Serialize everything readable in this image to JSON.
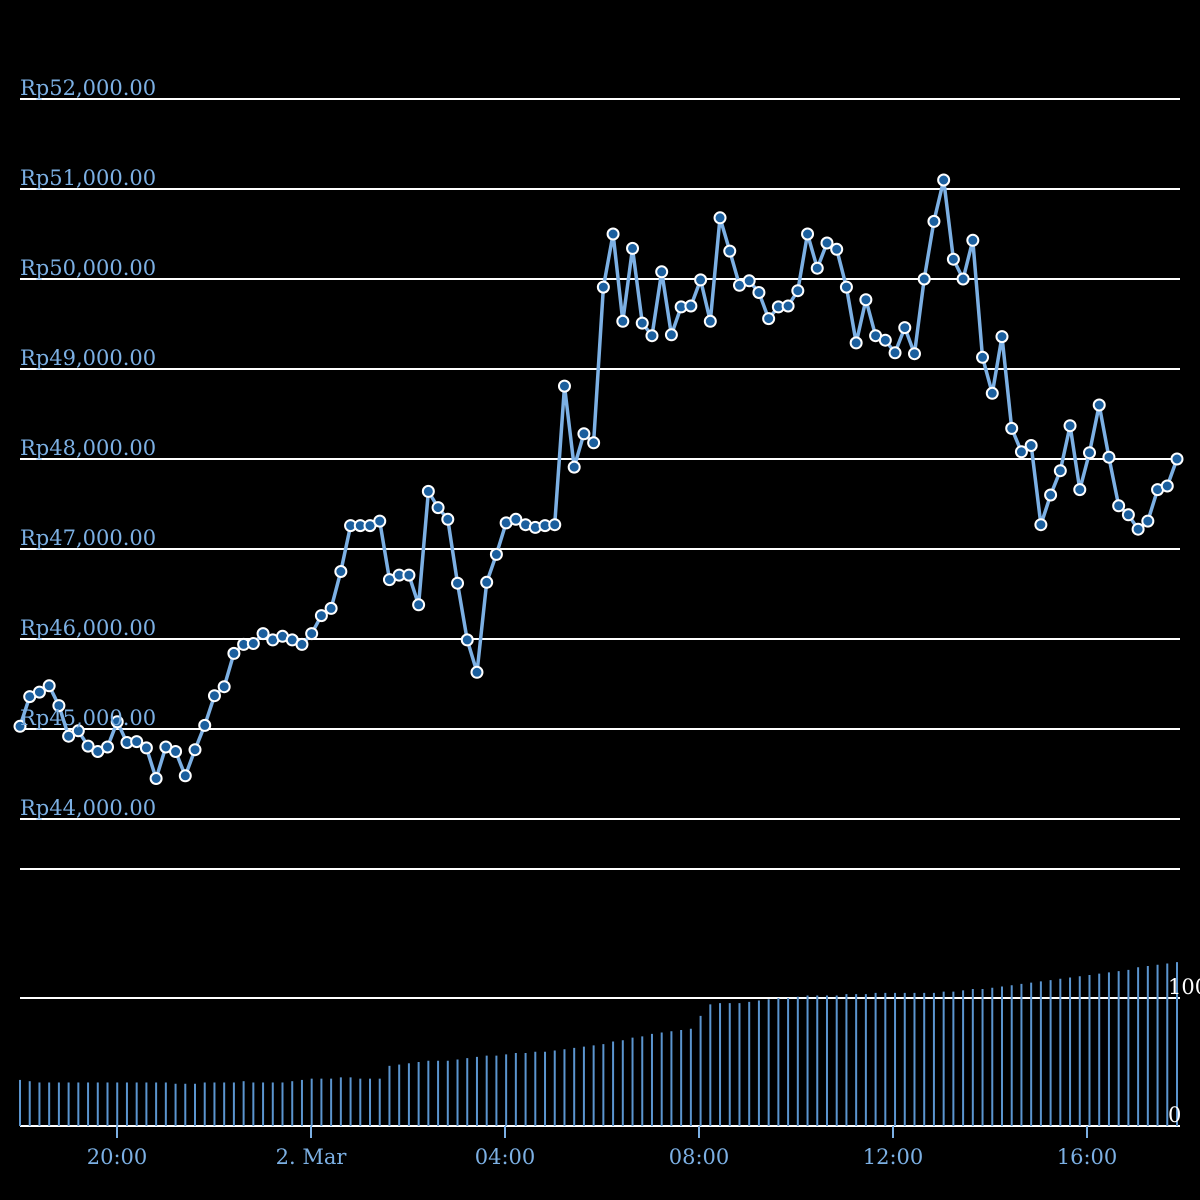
{
  "chart_data": {
    "type": "line",
    "title": "",
    "currency_prefix": "Rp",
    "price_axis": {
      "ticks": [
        {
          "value": 52000,
          "label": "Rp52,000.00"
        },
        {
          "value": 51000,
          "label": "Rp51,000.00"
        },
        {
          "value": 50000,
          "label": "Rp50,000.00"
        },
        {
          "value": 49000,
          "label": "Rp49,000.00"
        },
        {
          "value": 48000,
          "label": "Rp48,000.00"
        },
        {
          "value": 47000,
          "label": "Rp47,000.00"
        },
        {
          "value": 46000,
          "label": "Rp46,000.00"
        },
        {
          "value": 45000,
          "label": "Rp45,000.00"
        },
        {
          "value": 44000,
          "label": "Rp44,000.00"
        }
      ],
      "ylim": [
        44000,
        52000
      ],
      "grid": true
    },
    "volume_axis": {
      "ticks": [
        {
          "value": 100,
          "label": "100"
        },
        {
          "value": 0,
          "label": "0"
        }
      ]
    },
    "time_axis": {
      "ticks": [
        {
          "time": "20:00",
          "label": "20:00"
        },
        {
          "time": "00:00",
          "label": "2. Mar"
        },
        {
          "time": "04:00",
          "label": "04:00"
        },
        {
          "time": "08:00",
          "label": "08:00"
        },
        {
          "time": "12:00",
          "label": "12:00"
        },
        {
          "time": "16:00",
          "label": "16:00"
        }
      ],
      "x_range_hours": [
        18,
        42
      ]
    },
    "colors": {
      "background": "#000000",
      "grid": "#ffffff",
      "line": "#7cb0e4",
      "point_fill": "#1b5f9e",
      "point_stroke": "#ffffff",
      "volume": "#5b95cf",
      "axis_text": "#7cb0e4",
      "volume_text": "#ffffff"
    },
    "series": [
      {
        "values": [
          45030,
          45360,
          45410,
          45480,
          45260,
          44920,
          44980,
          44810,
          44750,
          44800,
          45080,
          44850,
          44860,
          44790,
          44450,
          44800,
          44750,
          44480,
          44770,
          45040,
          45370,
          45470,
          45840,
          45940,
          45950,
          46060,
          45990,
          46030,
          45990,
          45940,
          46060,
          46260,
          46340,
          46750,
          47260,
          47260,
          47260,
          47310,
          46660,
          46710,
          46710,
          46380,
          47640,
          47460,
          47330,
          46620,
          45990,
          45630,
          46630,
          46940,
          47290,
          47330,
          47270,
          47240,
          47260,
          47270,
          48810,
          47910,
          48280,
          48180,
          49910,
          50500,
          49530,
          50340,
          49510,
          49370,
          50080,
          49380,
          49690,
          49700,
          49990,
          49530,
          50680,
          50310,
          49930,
          49980,
          49850,
          49560,
          49690,
          49700,
          49870,
          50500,
          50120,
          50400,
          50330,
          49910,
          49290,
          49770,
          49370,
          49320,
          49180,
          49460,
          49170,
          50000,
          50640,
          51100,
          50220,
          50000,
          50430,
          49130,
          48730,
          49360,
          48340,
          48080,
          48150,
          47270,
          47600,
          47870,
          48370,
          47660,
          48070,
          48600,
          48020,
          47480,
          47380,
          47220,
          47310,
          47660,
          47700,
          48000
        ],
        "volumes": [
          36,
          35,
          34,
          34,
          34,
          34,
          34,
          34,
          34,
          34,
          34,
          34,
          34,
          34,
          34,
          34,
          33,
          33,
          33,
          34,
          34,
          34,
          34,
          35,
          34,
          34,
          34,
          34,
          35,
          36,
          37,
          37,
          37,
          38,
          38,
          37,
          37,
          37,
          47,
          48,
          49,
          50,
          51,
          51,
          51,
          52,
          53,
          54,
          55,
          55,
          56,
          57,
          57,
          58,
          58,
          59,
          60,
          61,
          62,
          63,
          64,
          66,
          67,
          69,
          70,
          72,
          73,
          74,
          75,
          76,
          86,
          95,
          96,
          96,
          96,
          97,
          98,
          99,
          100,
          100,
          101,
          102,
          102,
          102,
          102,
          103,
          103,
          103,
          104,
          104,
          104,
          104,
          104,
          104,
          104,
          105,
          105,
          106,
          107,
          107,
          108,
          109,
          110,
          111,
          112,
          113,
          114,
          115,
          116,
          117,
          118,
          119,
          120,
          121,
          122,
          124,
          125,
          126,
          127,
          128
        ]
      }
    ]
  }
}
